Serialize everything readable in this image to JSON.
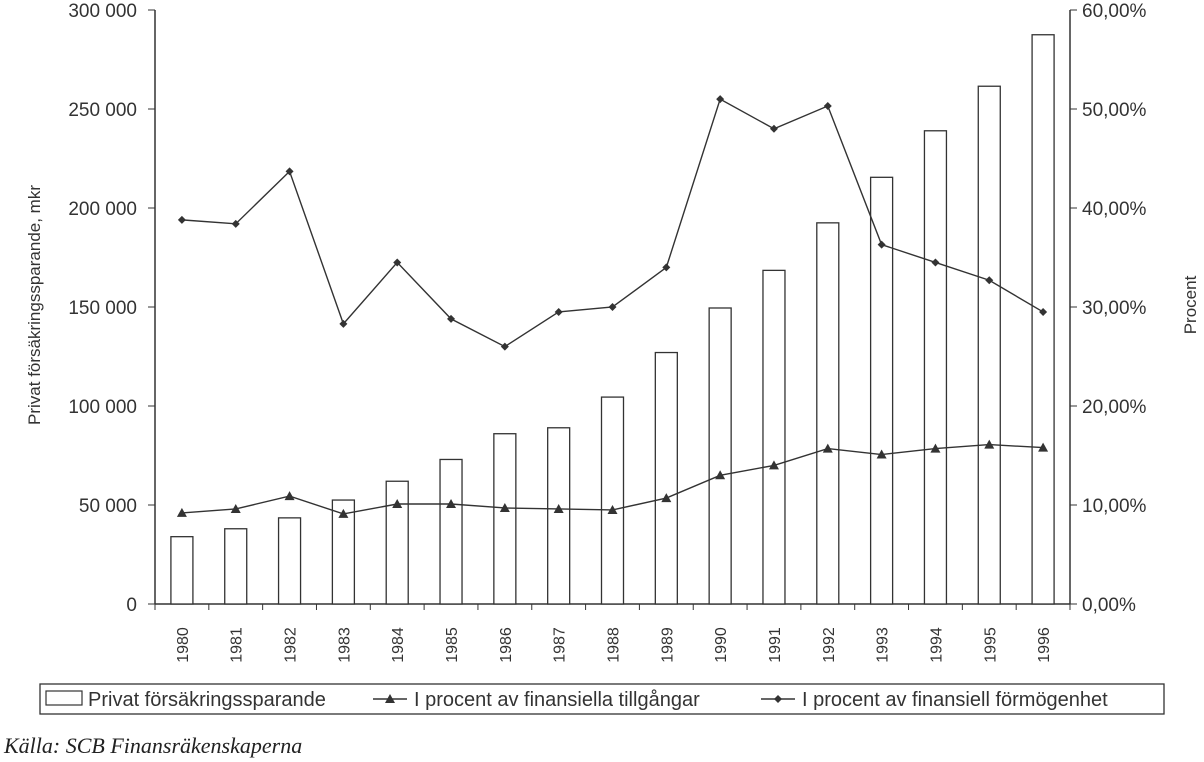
{
  "chart_data": {
    "type": "bar+line",
    "categories": [
      "1980",
      "1981",
      "1982",
      "1983",
      "1984",
      "1985",
      "1986",
      "1987",
      "1988",
      "1989",
      "1990",
      "1991",
      "1992",
      "1993",
      "1994",
      "1995",
      "1996"
    ],
    "bar_series": {
      "name": "Privat försäkringssparande",
      "axis": "left",
      "values": [
        34000,
        38000,
        43500,
        52500,
        62000,
        73000,
        86000,
        89000,
        104500,
        127000,
        149500,
        168500,
        192500,
        215500,
        239000,
        261500,
        287500
      ]
    },
    "line_series": [
      {
        "name": "I procent av finansiella tillgångar",
        "axis": "right",
        "marker": "triangle",
        "values": [
          9.2,
          9.6,
          10.9,
          9.1,
          10.1,
          10.1,
          9.7,
          9.6,
          9.5,
          10.7,
          13.0,
          14.0,
          15.7,
          15.1,
          15.7,
          16.1,
          15.8
        ]
      },
      {
        "name": "I procent av finansiell förmögenhet",
        "axis": "right",
        "marker": "diamond",
        "values": [
          38.8,
          38.4,
          43.7,
          28.3,
          34.5,
          28.8,
          26.0,
          29.5,
          30.0,
          34.0,
          51.0,
          48.0,
          50.3,
          36.3,
          34.5,
          32.7,
          29.5
        ]
      }
    ],
    "y_left": {
      "label": "Privat försäkringssparande, mkr",
      "ylim": [
        0,
        300000
      ],
      "ticks": [
        "0",
        "50 000",
        "100 000",
        "150 000",
        "200 000",
        "250 000",
        "300 000"
      ]
    },
    "y_right": {
      "label": "Procent",
      "ylim": [
        0,
        60
      ],
      "ticks": [
        "0,00%",
        "10,00%",
        "20,00%",
        "30,00%",
        "40,00%",
        "50,00%",
        "60,00%"
      ]
    },
    "legend_position": "bottom",
    "grid": false
  },
  "source_note": "Källa: SCB Finansräkenskaperna"
}
